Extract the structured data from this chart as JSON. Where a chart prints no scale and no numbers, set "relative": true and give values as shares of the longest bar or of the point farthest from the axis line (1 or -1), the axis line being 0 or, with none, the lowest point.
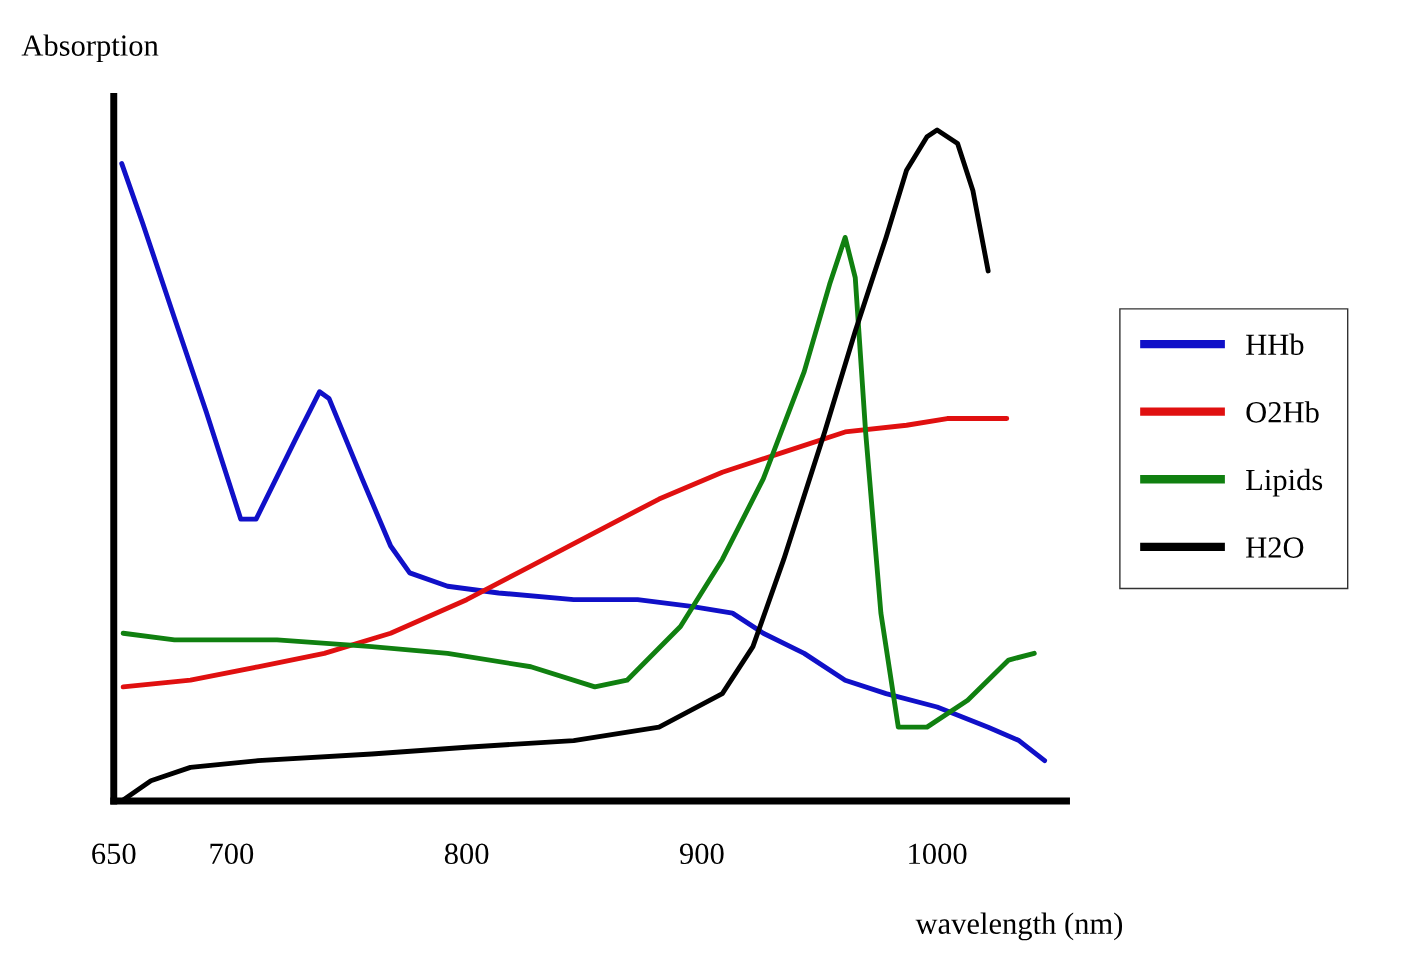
{
  "chart_data": {
    "type": "line",
    "relative": true,
    "ylabel": "Absorption",
    "xlabel": "wavelength (nm)",
    "xlim": [
      650,
      1055
    ],
    "xticks": [
      650,
      700,
      800,
      900,
      1000
    ],
    "grid": false,
    "legend": "right",
    "marker": "none",
    "line_style": "solid",
    "series": [
      {
        "name": "HHb",
        "color": "#1010c8",
        "x": [
          653.4,
          662.4,
          675.8,
          689.3,
          704.0,
          710.5,
          727.4,
          737.5,
          741.5,
          755.6,
          767.7,
          775.8,
          791.9,
          813.6,
          845.5,
          872.7,
          895.5,
          913.0,
          926.1,
          943.5,
          960.9,
          978.3,
          1000,
          1021.7,
          1034.8,
          1045.7
        ],
        "values": [
          0.95,
          0.86,
          0.72,
          0.58,
          0.42,
          0.42,
          0.54,
          0.61,
          0.6,
          0.48,
          0.38,
          0.34,
          0.32,
          0.31,
          0.3,
          0.3,
          0.29,
          0.28,
          0.25,
          0.22,
          0.18,
          0.16,
          0.14,
          0.11,
          0.09,
          0.06
        ]
      },
      {
        "name": "O2Hb",
        "color": "#e01010",
        "x": [
          654.0,
          682.6,
          711.3,
          739.5,
          767.7,
          800,
          827.3,
          854.5,
          881.8,
          908.7,
          934.8,
          960.9,
          987,
          1004.3,
          1021.7,
          1029.6
        ],
        "values": [
          0.17,
          0.18,
          0.2,
          0.22,
          0.25,
          0.3,
          0.35,
          0.4,
          0.45,
          0.49,
          0.52,
          0.55,
          0.56,
          0.57,
          0.57,
          0.57
        ]
      },
      {
        "name": "Lipids",
        "color": "#108010",
        "x": [
          654,
          675.8,
          719.4,
          759.7,
          791.9,
          827.3,
          854.5,
          868.2,
          890.9,
          908.7,
          926.1,
          943.5,
          954.3,
          960.9,
          965.2,
          969.6,
          976.1,
          983.5,
          995.7,
          1013,
          1030.4,
          1041.3
        ],
        "values": [
          0.25,
          0.24,
          0.24,
          0.23,
          0.22,
          0.2,
          0.17,
          0.18,
          0.26,
          0.36,
          0.48,
          0.64,
          0.77,
          0.84,
          0.78,
          0.55,
          0.28,
          0.11,
          0.11,
          0.15,
          0.21,
          0.22
        ]
      },
      {
        "name": "H2O",
        "color": "#000000",
        "x": [
          653.4,
          665.8,
          682.6,
          711.3,
          759.7,
          800,
          845.5,
          881.8,
          908.7,
          921.7,
          934.8,
          952.2,
          965.2,
          978.3,
          987,
          995.7,
          1000,
          1008.7,
          1015.2,
          1021.7
        ],
        "values": [
          0,
          0.03,
          0.05,
          0.06,
          0.07,
          0.08,
          0.09,
          0.11,
          0.16,
          0.23,
          0.36,
          0.55,
          0.7,
          0.84,
          0.94,
          0.99,
          1.0,
          0.98,
          0.91,
          0.79
        ]
      }
    ]
  }
}
